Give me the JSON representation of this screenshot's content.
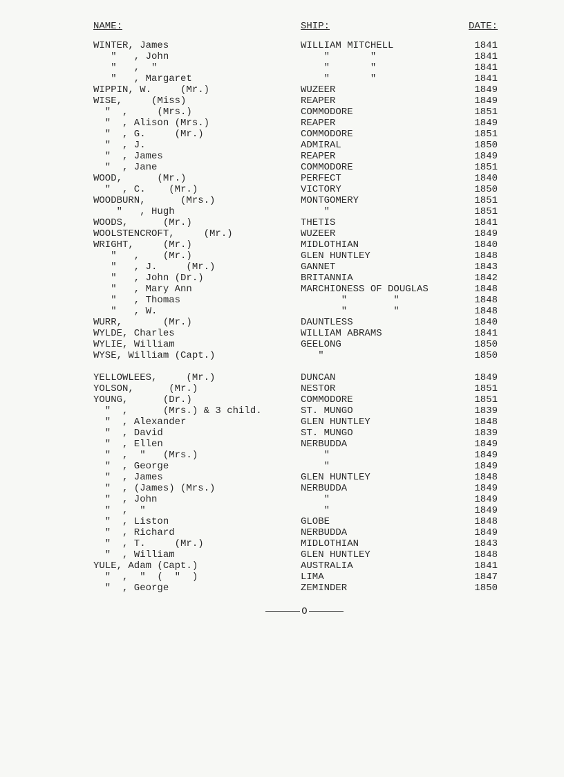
{
  "font_family": "Courier New",
  "text_color": "#2a2a2a",
  "background_color": "#f7f8f5",
  "headers": {
    "name": "NAME:",
    "ship": "SHIP:",
    "date": "DATE:"
  },
  "rows": [
    {
      "name": "WINTER, James",
      "ship": "WILLIAM MITCHELL",
      "date": "1841"
    },
    {
      "name": "   \"   , John",
      "ship": "    \"       \"",
      "date": "1841"
    },
    {
      "name": "   \"   ,  \"",
      "ship": "    \"       \"",
      "date": "1841"
    },
    {
      "name": "   \"   , Margaret",
      "ship": "    \"       \"",
      "date": "1841"
    },
    {
      "name": "WIPPIN, W.     (Mr.)",
      "ship": "WUZEER",
      "date": "1849"
    },
    {
      "name": "WISE,     (Miss)",
      "ship": "REAPER",
      "date": "1849"
    },
    {
      "name": "  \"  ,     (Mrs.)",
      "ship": "COMMODORE",
      "date": "1851"
    },
    {
      "name": "  \"  , Alison (Mrs.)",
      "ship": "REAPER",
      "date": "1849"
    },
    {
      "name": "  \"  , G.     (Mr.)",
      "ship": "COMMODORE",
      "date": "1851"
    },
    {
      "name": "  \"  , J.",
      "ship": "ADMIRAL",
      "date": "1850"
    },
    {
      "name": "  \"  , James",
      "ship": "REAPER",
      "date": "1849"
    },
    {
      "name": "  \"  , Jane",
      "ship": "COMMODORE",
      "date": "1851"
    },
    {
      "name": "WOOD,      (Mr.)",
      "ship": "PERFECT",
      "date": "1840"
    },
    {
      "name": "  \"  , C.    (Mr.)",
      "ship": "VICTORY",
      "date": "1850"
    },
    {
      "name": "WOODBURN,      (Mrs.)",
      "ship": "MONTGOMERY",
      "date": "1851"
    },
    {
      "name": "    \"   , Hugh",
      "ship": "    \"",
      "date": "1851"
    },
    {
      "name": "WOODS,      (Mr.)",
      "ship": "THETIS",
      "date": "1841"
    },
    {
      "name": "WOOLSTENCROFT,     (Mr.)",
      "ship": "WUZEER",
      "date": "1849"
    },
    {
      "name": "WRIGHT,     (Mr.)",
      "ship": "MIDLOTHIAN",
      "date": "1840"
    },
    {
      "name": "   \"   ,    (Mr.)",
      "ship": "GLEN HUNTLEY",
      "date": "1848"
    },
    {
      "name": "   \"   , J.     (Mr.)",
      "ship": "GANNET",
      "date": "1843"
    },
    {
      "name": "   \"   , John (Dr.)",
      "ship": "BRITANNIA",
      "date": "1842"
    },
    {
      "name": "   \"   , Mary Ann",
      "ship": "MARCHIONESS OF DOUGLAS",
      "date": "1848"
    },
    {
      "name": "   \"   , Thomas",
      "ship": "       \"        \"",
      "date": "1848"
    },
    {
      "name": "   \"   , W.",
      "ship": "       \"        \"",
      "date": "1848"
    },
    {
      "name": "WURR,       (Mr.)",
      "ship": "DAUNTLESS",
      "date": "1840"
    },
    {
      "name": "WYLDE, Charles",
      "ship": "WILLIAM ABRAMS",
      "date": "1841"
    },
    {
      "name": "WYLIE, William",
      "ship": "GEELONG",
      "date": "1850"
    },
    {
      "name": "WYSE, William (Capt.)",
      "ship": "   \"",
      "date": "1850"
    },
    {
      "name": " ",
      "ship": " ",
      "date": " "
    },
    {
      "name": "YELLOWLEES,     (Mr.)",
      "ship": "DUNCAN",
      "date": "1849"
    },
    {
      "name": "YOLSON,      (Mr.)",
      "ship": "NESTOR",
      "date": "1851"
    },
    {
      "name": "YOUNG,      (Dr.)",
      "ship": "COMMODORE",
      "date": "1851"
    },
    {
      "name": "  \"  ,      (Mrs.) & 3 child.",
      "ship": "ST. MUNGO",
      "date": "1839"
    },
    {
      "name": "  \"  , Alexander",
      "ship": "GLEN HUNTLEY",
      "date": "1848"
    },
    {
      "name": "  \"  , David",
      "ship": "ST. MUNGO",
      "date": "1839"
    },
    {
      "name": "  \"  , Ellen",
      "ship": "NERBUDDA",
      "date": "1849"
    },
    {
      "name": "  \"  ,  \"   (Mrs.)",
      "ship": "    \"",
      "date": "1849"
    },
    {
      "name": "  \"  , George",
      "ship": "    \"",
      "date": "1849"
    },
    {
      "name": "  \"  , James",
      "ship": "GLEN HUNTLEY",
      "date": "1848"
    },
    {
      "name": "  \"  , (James) (Mrs.)",
      "ship": "NERBUDDA",
      "date": "1849"
    },
    {
      "name": "  \"  , John",
      "ship": "    \"",
      "date": "1849"
    },
    {
      "name": "  \"  ,  \"",
      "ship": "    \"",
      "date": "1849"
    },
    {
      "name": "  \"  , Liston",
      "ship": "GLOBE",
      "date": "1848"
    },
    {
      "name": "  \"  , Richard",
      "ship": "NERBUDDA",
      "date": "1849"
    },
    {
      "name": "  \"  , T.     (Mr.)",
      "ship": "MIDLOTHIAN",
      "date": "1843"
    },
    {
      "name": "  \"  , William",
      "ship": "GLEN HUNTLEY",
      "date": "1848"
    },
    {
      "name": "YULE, Adam (Capt.)",
      "ship": "AUSTRALIA",
      "date": "1841"
    },
    {
      "name": "  \"  ,  \"  (  \"  )",
      "ship": "LIMA",
      "date": "1847"
    },
    {
      "name": "  \"  , George",
      "ship": "ZEMINDER",
      "date": "1850"
    }
  ],
  "end_mark": "O"
}
